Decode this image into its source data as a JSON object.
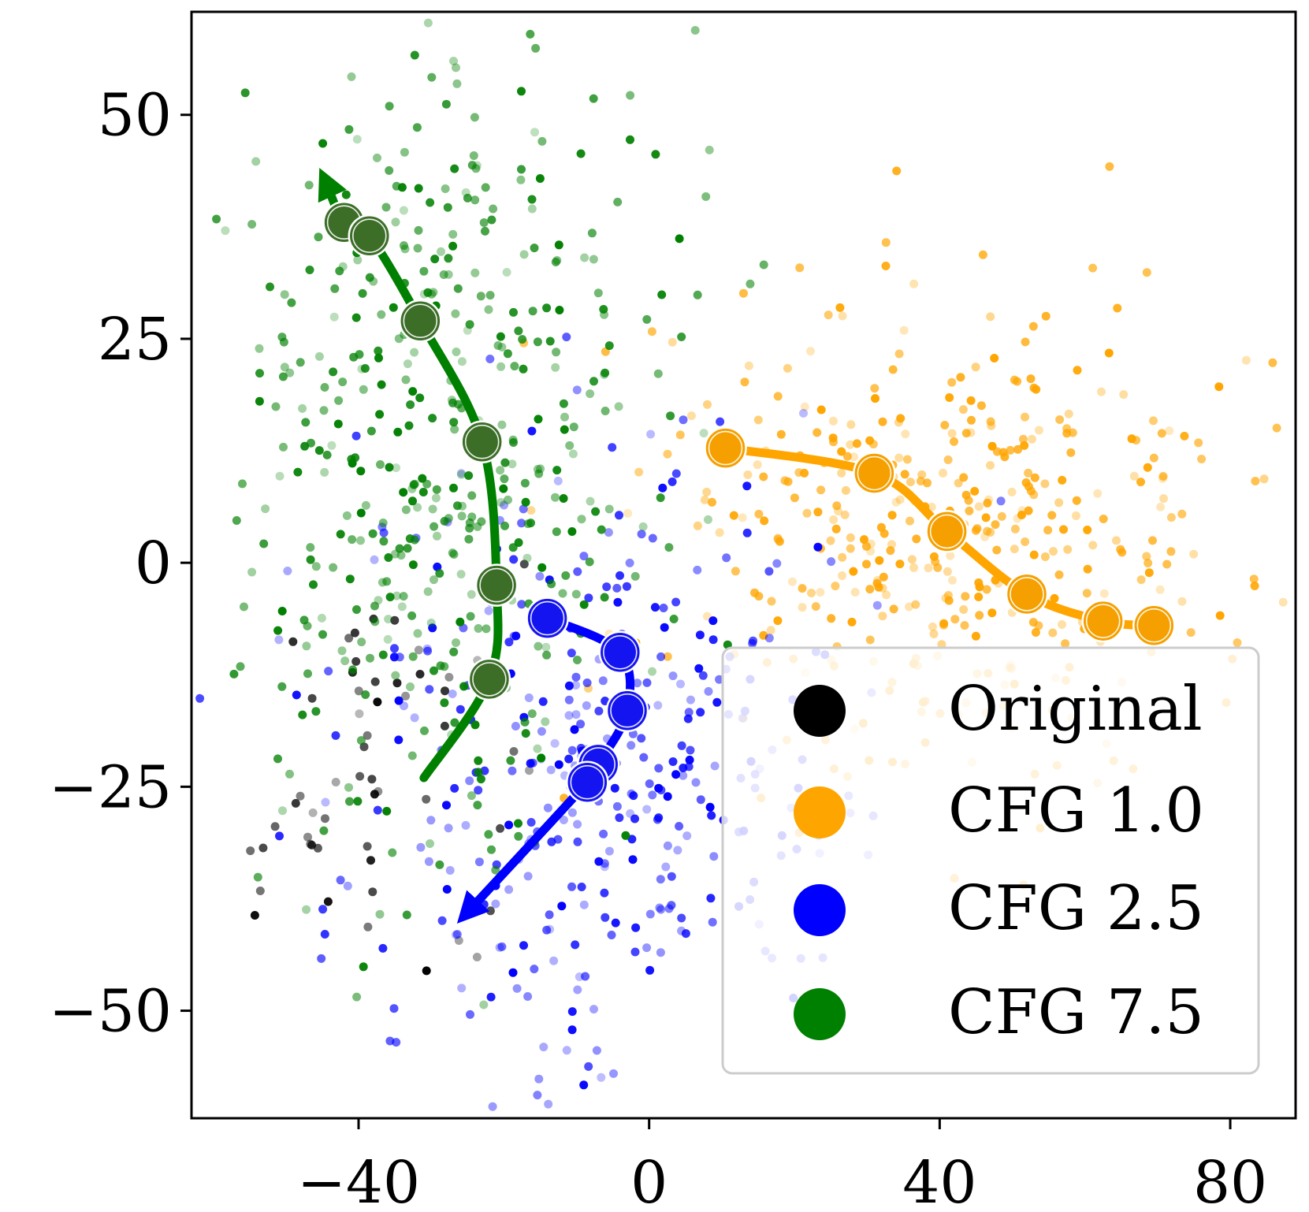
{
  "chart_data": {
    "type": "scatter",
    "title": "",
    "xlabel": "",
    "ylabel": "",
    "xlim": [
      -63,
      89
    ],
    "ylim": [
      -62,
      61.5
    ],
    "xticks": [
      {
        "value": -40,
        "label": "−40"
      },
      {
        "value": 0,
        "label": "0"
      },
      {
        "value": 40,
        "label": "40"
      },
      {
        "value": 80,
        "label": "80"
      }
    ],
    "yticks": [
      {
        "value": 50,
        "label": "50"
      },
      {
        "value": 25,
        "label": "25"
      },
      {
        "value": 0,
        "label": "0"
      },
      {
        "value": -25,
        "label": "−25"
      },
      {
        "value": -50,
        "label": "−50"
      }
    ],
    "grid": false,
    "legend": {
      "placement": "lower-right",
      "items": [
        {
          "label": "Original",
          "color": "#000000"
        },
        {
          "label": "CFG 1.0",
          "color": "#FFA500"
        },
        {
          "label": "CFG 2.5",
          "color": "#0000FF"
        },
        {
          "label": "CFG 7.5",
          "color": "#008000"
        }
      ]
    },
    "series": [
      {
        "name": "Original",
        "color": "#000000",
        "cloud": {
          "center": [
            -38,
            -22
          ],
          "spread": [
            9,
            11
          ],
          "count": 55,
          "seed": 11
        },
        "trajectory": []
      },
      {
        "name": "CFG 1.0",
        "color": "#FFA500",
        "cloud": {
          "center": [
            42,
            3
          ],
          "spread": [
            20,
            13
          ],
          "count": 430,
          "seed": 23
        },
        "trajectory": [
          [
            10.5,
            12.8
          ],
          [
            31,
            10
          ],
          [
            41,
            3.5
          ],
          [
            52,
            -3.5
          ],
          [
            62.5,
            -6.5
          ],
          [
            69.5,
            -7
          ]
        ]
      },
      {
        "name": "CFG 2.5",
        "color": "#0000FF",
        "cloud": {
          "center": [
            -6,
            -22
          ],
          "spread": [
            18,
            17
          ],
          "count": 360,
          "seed": 37
        },
        "trajectory": [
          [
            -14,
            -6.2
          ],
          [
            -4,
            -10
          ],
          [
            -3,
            -16.5
          ],
          [
            -7,
            -22.5
          ],
          [
            -8.5,
            -24.5
          ]
        ],
        "arrow_end": [
          -25,
          -39
        ]
      },
      {
        "name": "CFG 7.5",
        "color": "#008000",
        "cloud": {
          "center": [
            -28,
            12
          ],
          "spread": [
            16,
            24
          ],
          "count": 470,
          "seed": 53
        },
        "trajectory": [
          [
            -42,
            38
          ],
          [
            -38.5,
            36.5
          ],
          [
            -31.5,
            27
          ],
          [
            -23,
            13.5
          ],
          [
            -21,
            -2.5
          ],
          [
            -22,
            -13
          ]
        ],
        "arrow_start": [
          -31,
          -24
        ],
        "arrow_end": [
          -44.5,
          42.5
        ]
      }
    ]
  }
}
